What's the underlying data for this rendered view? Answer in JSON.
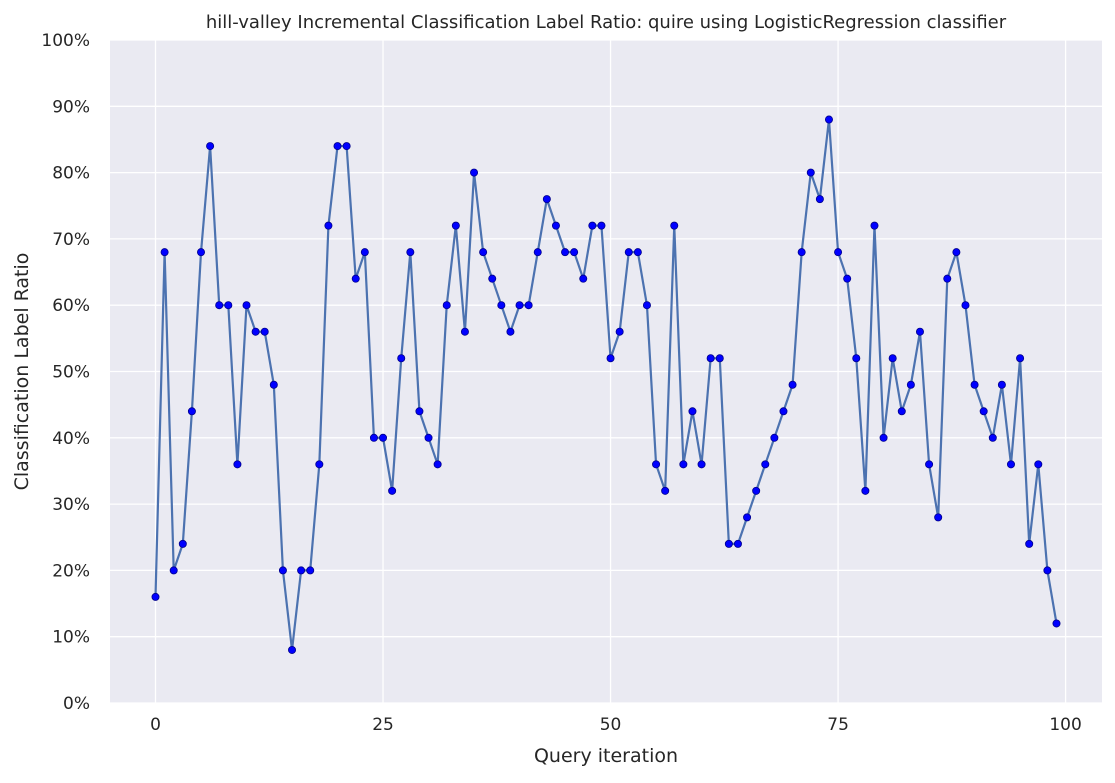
{
  "chart_data": {
    "type": "line",
    "title": "hill-valley Incremental Classification Label Ratio: quire using LogisticRegression classifier",
    "xlabel": "Query iteration",
    "ylabel": "Classification Label Ratio",
    "xlim": [
      -5,
      104
    ],
    "ylim": [
      0,
      1
    ],
    "xticks": [
      0,
      25,
      50,
      75,
      100
    ],
    "yticks": [
      0,
      0.1,
      0.2,
      0.3,
      0.4,
      0.5,
      0.6,
      0.7,
      0.8,
      0.9,
      1.0
    ],
    "ytick_labels": [
      "0%",
      "10%",
      "20%",
      "30%",
      "40%",
      "50%",
      "60%",
      "70%",
      "80%",
      "90%",
      "100%"
    ],
    "grid": true,
    "colors": {
      "background": "#EAEAF2",
      "grid": "#FFFFFF",
      "line": "#4C72B0",
      "marker": "#0000FF",
      "marker_edge": "#00008B"
    },
    "x": [
      0,
      1,
      2,
      3,
      4,
      5,
      6,
      7,
      8,
      9,
      10,
      11,
      12,
      13,
      14,
      15,
      16,
      17,
      18,
      19,
      20,
      21,
      22,
      23,
      24,
      25,
      26,
      27,
      28,
      29,
      30,
      31,
      32,
      33,
      34,
      35,
      36,
      37,
      38,
      39,
      40,
      41,
      42,
      43,
      44,
      45,
      46,
      47,
      48,
      49,
      50,
      51,
      52,
      53,
      54,
      55,
      56,
      57,
      58,
      59,
      60,
      61,
      62,
      63,
      64,
      65,
      66,
      67,
      68,
      69,
      70,
      71,
      72,
      73,
      74,
      75,
      76,
      77,
      78,
      79,
      80,
      81,
      82,
      83,
      84,
      85,
      86,
      87,
      88,
      89,
      90,
      91,
      92,
      93,
      94,
      95,
      96,
      97,
      98,
      99
    ],
    "y": [
      0.16,
      0.68,
      0.2,
      0.24,
      0.44,
      0.68,
      0.84,
      0.6,
      0.6,
      0.36,
      0.6,
      0.56,
      0.56,
      0.48,
      0.2,
      0.08,
      0.2,
      0.2,
      0.36,
      0.72,
      0.84,
      0.84,
      0.64,
      0.68,
      0.4,
      0.4,
      0.32,
      0.52,
      0.68,
      0.44,
      0.4,
      0.36,
      0.6,
      0.72,
      0.56,
      0.8,
      0.68,
      0.64,
      0.6,
      0.56,
      0.6,
      0.6,
      0.68,
      0.76,
      0.72,
      0.68,
      0.68,
      0.64,
      0.72,
      0.72,
      0.52,
      0.56,
      0.68,
      0.68,
      0.6,
      0.36,
      0.32,
      0.72,
      0.36,
      0.44,
      0.36,
      0.52,
      0.52,
      0.24,
      0.24,
      0.28,
      0.32,
      0.36,
      0.4,
      0.44,
      0.48,
      0.68,
      0.8,
      0.76,
      0.88,
      0.68,
      0.64,
      0.52,
      0.32,
      0.72,
      0.4,
      0.52,
      0.44,
      0.48,
      0.56,
      0.36,
      0.28,
      0.64,
      0.68,
      0.6,
      0.48,
      0.44,
      0.4,
      0.48,
      0.36,
      0.52,
      0.24,
      0.36,
      0.2,
      0.12
    ]
  }
}
